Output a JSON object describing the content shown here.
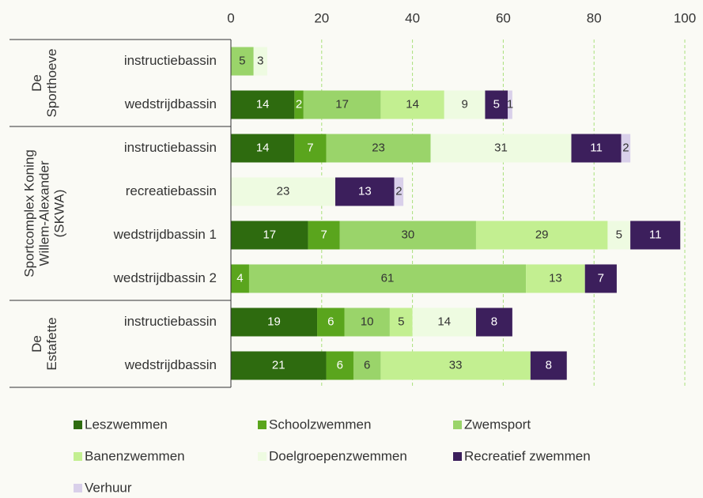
{
  "chart_data": {
    "type": "stacked_bar_horizontal",
    "groups": [
      {
        "name": [
          "De",
          "Sporthoeve"
        ],
        "categories": [
          "instructiebassin",
          "wedstrijdbassin"
        ]
      },
      {
        "name": [
          "Sportcomplex Koning",
          "Willem-Alexander",
          "(SKWA)"
        ],
        "categories": [
          "instructiebassin",
          "recreatiebassin",
          "wedstrijdbassin 1",
          "wedstrijdbassin 2"
        ]
      },
      {
        "name": [
          "De",
          "Estafette"
        ],
        "categories": [
          "instructiebassin",
          "wedstrijdbassin"
        ]
      }
    ],
    "series": [
      {
        "name": "Leszwemmen",
        "color": "#2e6b0f",
        "values": [
          null,
          14,
          14,
          null,
          17,
          null,
          19,
          21
        ]
      },
      {
        "name": "Schoolzwemmen",
        "color": "#5aa51d",
        "values": [
          null,
          2,
          7,
          null,
          7,
          4,
          6,
          6
        ]
      },
      {
        "name": "Zwemsport",
        "color": "#9ad46a",
        "values": [
          5,
          17,
          23,
          null,
          30,
          61,
          10,
          6
        ]
      },
      {
        "name": "Banenzwemmen",
        "color": "#c3ef91",
        "values": [
          null,
          14,
          null,
          null,
          29,
          13,
          5,
          33
        ]
      },
      {
        "name": "Doelgroepenzwemmen",
        "color": "#eefbe1",
        "values": [
          3,
          9,
          31,
          23,
          5,
          null,
          14,
          null
        ]
      },
      {
        "name": "Recreatief zwemmen",
        "color": "#3c1f5c",
        "values": [
          null,
          5,
          11,
          13,
          11,
          7,
          8,
          8
        ]
      },
      {
        "name": "Verhuur",
        "color": "#d9d0ea",
        "values": [
          null,
          1,
          2,
          2,
          null,
          null,
          null,
          null
        ]
      }
    ],
    "xlim": [
      0,
      100
    ],
    "xticks": [
      0,
      20,
      40,
      60,
      80,
      100
    ],
    "grid": true,
    "legend": "bottom"
  }
}
